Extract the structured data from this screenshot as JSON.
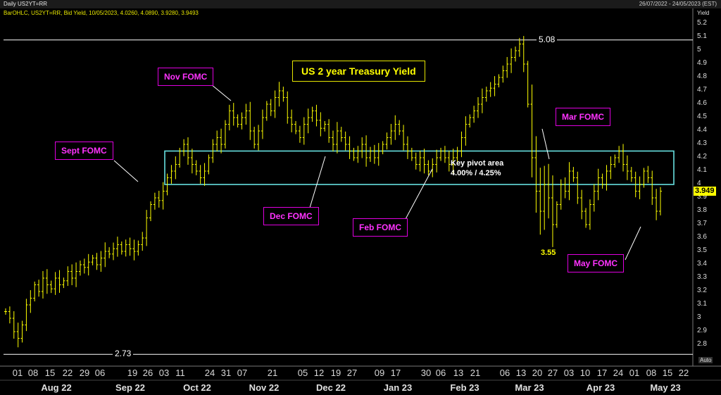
{
  "header": {
    "left": "Daily US2YT=RR",
    "right": "26/07/2022 - 24/05/2023 (EST)"
  },
  "legend": "BarOHLC, US2YT=RR, Bid Yield, 10/05/2023, 4.0260, 4.0890, 3.9280, 3.9493",
  "colors": {
    "bars": "#ffff00",
    "fomc": "#e000e0",
    "pivot_box": "#66e0e0",
    "hlines": "#ffffff"
  },
  "chart_data": {
    "type": "ohlc",
    "title": "US 2 year Treasury Yield",
    "ylabel": "Yield",
    "ylim": [
      2.7,
      5.2
    ],
    "y_ticks": [
      "5.2",
      "5.1",
      "5",
      "4.9",
      "4.8",
      "4.7",
      "4.6",
      "4.5",
      "4.4",
      "4.3",
      "4.2",
      "4.1",
      "4",
      "3.9",
      "3.8",
      "3.7",
      "3.6",
      "3.5",
      "3.4",
      "3.3",
      "3.2",
      "3.1",
      "3",
      "2.9",
      "2.8"
    ],
    "current_value": "3.949",
    "x_ticks": [
      "01",
      "08",
      "15",
      "22",
      "29",
      "06",
      "19",
      "26",
      "03",
      "11",
      "24",
      "31",
      "07",
      "21",
      "05",
      "12",
      "19",
      "27",
      "09",
      "17",
      "30",
      "06",
      "13",
      "21",
      "06",
      "13",
      "20",
      "27",
      "03",
      "10",
      "17",
      "24",
      "01",
      "08",
      "15",
      "22"
    ],
    "x_months": [
      "Aug 22",
      "Sep 22",
      "Oct 22",
      "Nov 22",
      "Dec 22",
      "Jan 23",
      "Feb 23",
      "Mar 23",
      "Apr 23",
      "May 23"
    ],
    "auto_label": "Auto",
    "horizontal_lines": [
      {
        "value": 5.08,
        "label": "5.08"
      },
      {
        "value": 2.73,
        "label": "2.73"
      }
    ],
    "pivot_area": {
      "low": 4.0,
      "high": 4.25,
      "label_line1": "Key pivot area",
      "label_line2": "4.00% / 4.25%"
    },
    "low_annotation": "3.55",
    "annotations": [
      "Sept FOMC",
      "Nov FOMC",
      "Dec FOMC",
      "Feb FOMC",
      "Mar FOMC",
      "May FOMC"
    ],
    "closes": [
      3.05,
      3.0,
      2.9,
      2.85,
      2.95,
      3.1,
      3.15,
      3.25,
      3.2,
      3.3,
      3.25,
      3.22,
      3.3,
      3.25,
      3.28,
      3.35,
      3.3,
      3.35,
      3.4,
      3.38,
      3.42,
      3.45,
      3.4,
      3.45,
      3.5,
      3.48,
      3.52,
      3.55,
      3.5,
      3.55,
      3.52,
      3.5,
      3.55,
      3.6,
      3.75,
      3.85,
      3.9,
      3.88,
      3.95,
      4.05,
      4.1,
      4.15,
      4.25,
      4.3,
      4.2,
      4.15,
      4.1,
      4.05,
      4.1,
      4.2,
      4.3,
      4.35,
      4.3,
      4.45,
      4.55,
      4.5,
      4.45,
      4.5,
      4.55,
      4.4,
      4.3,
      4.4,
      4.5,
      4.6,
      4.55,
      4.65,
      4.7,
      4.65,
      4.5,
      4.45,
      4.4,
      4.35,
      4.45,
      4.5,
      4.55,
      4.48,
      4.42,
      4.45,
      4.35,
      4.3,
      4.4,
      4.35,
      4.3,
      4.25,
      4.2,
      4.25,
      4.3,
      4.2,
      4.25,
      4.2,
      4.25,
      4.3,
      4.35,
      4.4,
      4.45,
      4.4,
      4.3,
      4.25,
      4.2,
      4.15,
      4.2,
      4.15,
      4.1,
      4.15,
      4.2,
      4.25,
      4.2,
      4.15,
      4.2,
      4.25,
      4.35,
      4.45,
      4.5,
      4.55,
      4.6,
      4.65,
      4.7,
      4.72,
      4.75,
      4.8,
      4.85,
      4.9,
      4.95,
      5.0,
      5.05,
      4.9,
      4.6,
      4.2,
      3.95,
      3.8,
      4.0,
      3.9,
      3.7,
      3.85,
      4.0,
      3.95,
      4.1,
      4.05,
      3.9,
      3.8,
      3.7,
      3.85,
      3.95,
      4.05,
      4.0,
      4.1,
      4.15,
      4.2,
      4.25,
      4.15,
      4.1,
      4.05,
      3.95,
      4.0,
      4.1,
      4.05,
      3.9,
      3.8,
      3.95
    ]
  }
}
